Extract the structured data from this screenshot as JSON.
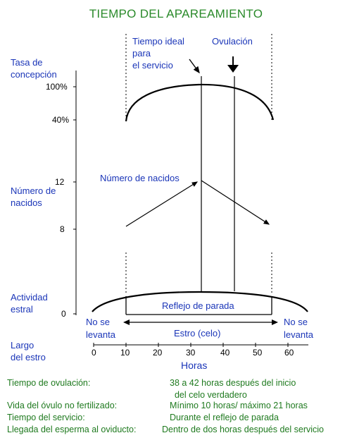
{
  "title": "TIEMPO DEL APAREAMIENTO",
  "y_labels": {
    "conception_rate": "Tasa de\nconcepción",
    "born_count": "Número de\nnacidos",
    "estrus_activity": "Actividad\nestral",
    "estrus_length": "Largo\ndel estro"
  },
  "y_ticks": {
    "conception_100": "100%",
    "conception_40": "40%",
    "born_12": "12",
    "born_8": "8",
    "estrus_0": "0"
  },
  "annotations": {
    "ideal_time": "Tiempo ideal\npara\nel servicio",
    "ovulation": "Ovulación",
    "born_label": "Número de nacidos",
    "standing_reflex": "Reflejo de parada",
    "no_stand_left": "No se\nlevanta",
    "no_stand_right": "No se\nlevanta",
    "estrus_heat": "Estro (celo)"
  },
  "x_axis": {
    "ticks": [
      "0",
      "10",
      "20",
      "30",
      "40",
      "50",
      "60"
    ],
    "label": "Horas"
  },
  "facts": [
    {
      "label": "Tiempo de ovulación:",
      "value": "38 a 42 horas después del inicio\n  del celo verdadero"
    },
    {
      "label": "Vida del óvulo no fertilizado:",
      "value": "Mínimo 10 horas/ máximo 21 horas"
    },
    {
      "label": "Tiempo del servicio:",
      "value": "Durante el reflejo de parada"
    },
    {
      "label": "Llegada del esperma al oviducto:",
      "value": "Dentro de dos horas después del servicio"
    }
  ],
  "colors": {
    "title": "#2a8a2a",
    "labels": "#1a35b8",
    "facts": "#1f7a1f",
    "lines": "#000000"
  }
}
